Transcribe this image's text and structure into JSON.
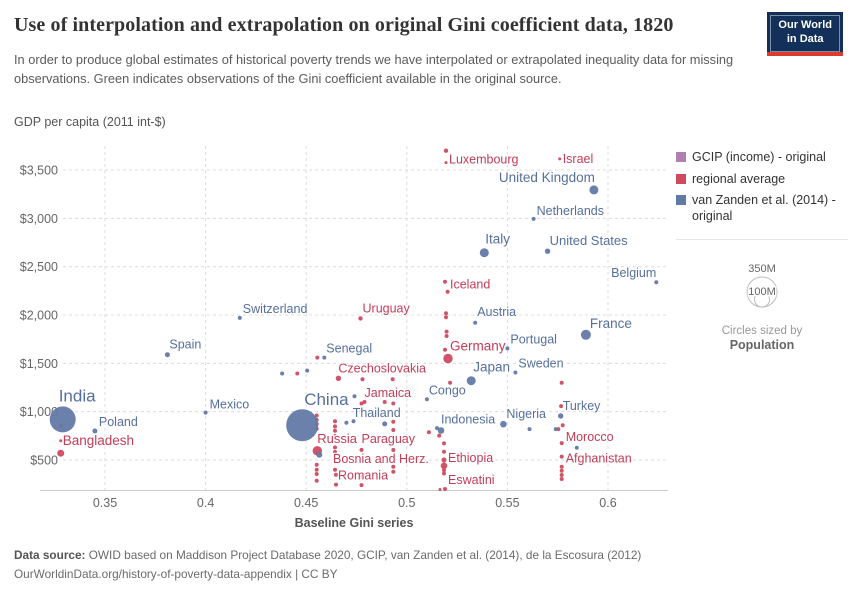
{
  "header": {
    "title": "Use of interpolation and extrapolation on original Gini coefficient data, 1820",
    "subtitle": "In order to produce global estimates of historical poverty trends we have interpolated or extrapolated inequality data for missing observations. Green indicates observations of the Gini coefficient available in the original source.",
    "logo_line1": "Our World",
    "logo_line2": "in Data"
  },
  "size_legend": {
    "outer_label": "350M",
    "inner_label": "100M",
    "caption1": "Circles sized by",
    "caption2": "Population"
  },
  "footer": {
    "source_prefix": "Data source:",
    "source_text": " OWID based on Maddison Project Database 2020, GCIP, van Zanden et al. (2014), de la Escosura (2012)",
    "license": "OurWorldinData.org/history-of-poverty-data-appendix | CC BY"
  },
  "chart_data": {
    "type": "scatter",
    "title": "Use of interpolation and extrapolation on original Gini coefficient data, 1820",
    "xlabel": "Baseline Gini series",
    "ylabel": "GDP per capita (2011 int-$)",
    "xlim": [
      0.318,
      0.628
    ],
    "ylim": [
      190,
      3780
    ],
    "grid": true,
    "legend_position": "right",
    "size_by": "Population",
    "size_ticks": [
      "350M",
      "100M"
    ],
    "x_ticks": [
      {
        "v": 0.35,
        "label": "0.35"
      },
      {
        "v": 0.4,
        "label": "0.4"
      },
      {
        "v": 0.45,
        "label": "0.45"
      },
      {
        "v": 0.5,
        "label": "0.5"
      },
      {
        "v": 0.55,
        "label": "0.55"
      },
      {
        "v": 0.6,
        "label": "0.6"
      }
    ],
    "y_ticks": [
      {
        "v": 500,
        "label": "$500"
      },
      {
        "v": 1000,
        "label": "$1,000"
      },
      {
        "v": 1500,
        "label": "$1,500"
      },
      {
        "v": 2000,
        "label": "$2,000"
      },
      {
        "v": 2500,
        "label": "$2,500"
      },
      {
        "v": 3000,
        "label": "$3,000"
      },
      {
        "v": 3500,
        "label": "$3,500"
      }
    ],
    "series": [
      {
        "name": "GCIP (income) - original",
        "color": "#b180b2",
        "label_color": "#9c5f9e",
        "points": []
      },
      {
        "name": "regional average",
        "color": "#cf4a5f",
        "label_color": "#c23d58",
        "points": [
          {
            "label": "Bangladesh",
            "x": 0.328,
            "y": 570,
            "r": 3.5,
            "dx": 2,
            "dy": -8,
            "fs": 13.5
          },
          {
            "label": "Luxembourg",
            "x": 0.5195,
            "y": 3700,
            "r": 2.2,
            "dx": 3,
            "dy": 13
          },
          {
            "label": "Israel",
            "x": 0.576,
            "y": 3615,
            "r": 1.5,
            "dx": 3,
            "dy": 4
          },
          {
            "label": "Iceland",
            "x": 0.519,
            "y": 2345,
            "r": 2,
            "dx": 5,
            "dy": 7
          },
          {
            "label": "Uruguay",
            "x": 0.477,
            "y": 1965,
            "r": 2.2,
            "dx": 2,
            "dy": -6
          },
          {
            "label": "Germany",
            "x": 0.5205,
            "y": 1550,
            "r": 4.7,
            "dx": 2,
            "dy": -8,
            "fs": 13.5
          },
          {
            "label": "Czechoslovakia",
            "x": 0.466,
            "y": 1345,
            "r": 2.7,
            "dx": 0,
            "dy": -6
          },
          {
            "label": "Jamaica",
            "x": 0.479,
            "y": 1100,
            "r": 2,
            "dx": 0,
            "dy": -5
          },
          {
            "label": "Russia",
            "x": 0.4555,
            "y": 595,
            "r": 4.7,
            "dx": 0,
            "dy": -8,
            "fs": 13
          },
          {
            "label": "Paraguay",
            "x": 0.4775,
            "y": 605,
            "r": 2,
            "dx": 0,
            "dy": -7
          },
          {
            "label": "Bosnia and Herz.",
            "x": 0.4643,
            "y": 583,
            "r": 2,
            "dx": -2,
            "dy": 11
          },
          {
            "label": "Romania",
            "x": 0.4648,
            "y": 245,
            "r": 2,
            "dx": 2,
            "dy": -5
          },
          {
            "label": "Ethiopia",
            "x": 0.5185,
            "y": 440,
            "r": 3.3,
            "dx": 4,
            "dy": -4
          },
          {
            "label": "Eswatini",
            "x": 0.519,
            "y": 200,
            "r": 2,
            "dx": 3,
            "dy": -5
          },
          {
            "label": "Morocco",
            "x": 0.577,
            "y": 675,
            "r": 2,
            "dx": 4,
            "dy": -2
          },
          {
            "label": "Afghanistan",
            "x": 0.577,
            "y": 535,
            "r": 2,
            "dx": 4,
            "dy": 6
          },
          {
            "x": 0.5203,
            "y": 2240,
            "r": 2
          },
          {
            "x": 0.5195,
            "y": 3577,
            "r": 1.5
          },
          {
            "x": 0.5195,
            "y": 2018,
            "r": 2
          },
          {
            "x": 0.5195,
            "y": 1977,
            "r": 2
          },
          {
            "x": 0.5198,
            "y": 1828,
            "r": 2
          },
          {
            "x": 0.5198,
            "y": 1783,
            "r": 2
          },
          {
            "x": 0.519,
            "y": 1640,
            "r": 2
          },
          {
            "x": 0.5215,
            "y": 1300,
            "r": 2
          },
          {
            "x": 0.3281,
            "y": 852,
            "r": 2.2
          },
          {
            "x": 0.328,
            "y": 700,
            "r": 1.5
          },
          {
            "x": 0.4555,
            "y": 1560,
            "r": 2
          },
          {
            "x": 0.4456,
            "y": 1395,
            "r": 2
          },
          {
            "x": 0.478,
            "y": 1335,
            "r": 2
          },
          {
            "x": 0.493,
            "y": 1335,
            "r": 2
          },
          {
            "x": 0.489,
            "y": 1100,
            "r": 2
          },
          {
            "x": 0.4552,
            "y": 960,
            "r": 2
          },
          {
            "x": 0.4552,
            "y": 915,
            "r": 2
          },
          {
            "x": 0.4552,
            "y": 872,
            "r": 2
          },
          {
            "x": 0.4552,
            "y": 823,
            "r": 2
          },
          {
            "x": 0.4552,
            "y": 450,
            "r": 2
          },
          {
            "x": 0.4552,
            "y": 400,
            "r": 2
          },
          {
            "x": 0.4552,
            "y": 355,
            "r": 2
          },
          {
            "x": 0.4552,
            "y": 285,
            "r": 2
          },
          {
            "x": 0.4643,
            "y": 900,
            "r": 2
          },
          {
            "x": 0.4643,
            "y": 848,
            "r": 2
          },
          {
            "x": 0.4643,
            "y": 803,
            "r": 2
          },
          {
            "x": 0.4643,
            "y": 755,
            "r": 1.5
          },
          {
            "x": 0.4643,
            "y": 630,
            "r": 2
          },
          {
            "x": 0.4643,
            "y": 400,
            "r": 2
          },
          {
            "x": 0.4648,
            "y": 348,
            "r": 2
          },
          {
            "x": 0.4775,
            "y": 1085,
            "r": 2
          },
          {
            "x": 0.4775,
            "y": 1018,
            "r": 2
          },
          {
            "x": 0.4775,
            "y": 327,
            "r": 2
          },
          {
            "x": 0.4775,
            "y": 240,
            "r": 2
          },
          {
            "x": 0.4933,
            "y": 1085,
            "r": 2
          },
          {
            "x": 0.4933,
            "y": 895,
            "r": 2
          },
          {
            "x": 0.4933,
            "y": 810,
            "r": 2
          },
          {
            "x": 0.4933,
            "y": 603,
            "r": 2
          },
          {
            "x": 0.4933,
            "y": 430,
            "r": 2
          },
          {
            "x": 0.4933,
            "y": 378,
            "r": 2
          },
          {
            "x": 0.511,
            "y": 787,
            "r": 2
          },
          {
            "x": 0.5161,
            "y": 752,
            "r": 2
          },
          {
            "x": 0.5185,
            "y": 672,
            "r": 2
          },
          {
            "x": 0.5185,
            "y": 585,
            "r": 2
          },
          {
            "x": 0.5185,
            "y": 500,
            "r": 2.5
          },
          {
            "x": 0.5185,
            "y": 395,
            "r": 2
          },
          {
            "x": 0.5185,
            "y": 360,
            "r": 2
          },
          {
            "x": 0.5165,
            "y": 195,
            "r": 1.5
          },
          {
            "x": 0.577,
            "y": 1300,
            "r": 2
          },
          {
            "x": 0.5767,
            "y": 1058,
            "r": 2
          },
          {
            "x": 0.5775,
            "y": 860,
            "r": 2
          },
          {
            "x": 0.5753,
            "y": 820,
            "r": 2
          },
          {
            "x": 0.577,
            "y": 430,
            "r": 2
          },
          {
            "x": 0.577,
            "y": 388,
            "r": 2
          },
          {
            "x": 0.577,
            "y": 345,
            "r": 2
          },
          {
            "x": 0.577,
            "y": 303,
            "r": 2
          }
        ]
      },
      {
        "name": "van Zanden et al. (2014) - original",
        "color": "#6379a5",
        "label_color": "#55709d",
        "points": [
          {
            "label": "India",
            "x": 0.329,
            "y": 920,
            "r": 13,
            "dx": -4,
            "dy": -18,
            "fs": 17
          },
          {
            "label": "Poland",
            "x": 0.345,
            "y": 800,
            "r": 2.5,
            "dx": 4,
            "dy": -5
          },
          {
            "label": "Spain",
            "x": 0.381,
            "y": 1590,
            "r": 2.5,
            "dx": 2,
            "dy": -6
          },
          {
            "label": "Mexico",
            "x": 0.4,
            "y": 990,
            "r": 2,
            "dx": 4,
            "dy": -4
          },
          {
            "label": "Switzerland",
            "x": 0.417,
            "y": 1970,
            "r": 2,
            "dx": 3,
            "dy": -5
          },
          {
            "label": "China",
            "x": 0.448,
            "y": 860,
            "r": 16,
            "dx": 2,
            "dy": -20,
            "fs": 17
          },
          {
            "label": "Senegal",
            "x": 0.459,
            "y": 1560,
            "r": 2,
            "dx": 2,
            "dy": -5
          },
          {
            "label": "Thailand",
            "x": 0.489,
            "y": 873,
            "r": 2.5,
            "dx": -8,
            "dy": -7,
            "a": "middle"
          },
          {
            "label": "Congo",
            "x": 0.51,
            "y": 1128,
            "r": 2,
            "dx": 2,
            "dy": -5
          },
          {
            "label": "Japan",
            "x": 0.532,
            "y": 1320,
            "r": 4.5,
            "dx": 2,
            "dy": -9,
            "fs": 13.5
          },
          {
            "label": "Italy",
            "x": 0.5385,
            "y": 2645,
            "r": 4.5,
            "dx": 1,
            "dy": -9,
            "fs": 13.5
          },
          {
            "label": "Austria",
            "x": 0.534,
            "y": 1920,
            "r": 2,
            "dx": 2,
            "dy": -7
          },
          {
            "label": "Portugal",
            "x": 0.55,
            "y": 1655,
            "r": 2,
            "dx": 3,
            "dy": -5
          },
          {
            "label": "Sweden",
            "x": 0.554,
            "y": 1405,
            "r": 2,
            "dx": 3,
            "dy": -5
          },
          {
            "label": "France",
            "x": 0.589,
            "y": 1795,
            "r": 5,
            "dx": 4,
            "dy": -7,
            "fs": 13.5
          },
          {
            "label": "United Kingdom",
            "x": 0.593,
            "y": 3295,
            "r": 4.5,
            "a": "end",
            "dx": 1,
            "dy": -8,
            "fs": 13.5
          },
          {
            "label": "Netherlands",
            "x": 0.563,
            "y": 2995,
            "r": 2,
            "dx": 3,
            "dy": -4
          },
          {
            "label": "United States",
            "x": 0.57,
            "y": 2660,
            "r": 2.7,
            "dx": 2,
            "dy": -6,
            "fs": 13
          },
          {
            "label": "Belgium",
            "x": 0.624,
            "y": 2340,
            "r": 2,
            "a": "end",
            "dx": 0,
            "dy": -5
          },
          {
            "label": "Nigeria",
            "x": 0.548,
            "y": 870,
            "r": 3.3,
            "dx": 3,
            "dy": -6
          },
          {
            "label": "Indonesia",
            "x": 0.517,
            "y": 805,
            "r": 3.3,
            "dx": 0,
            "dy": -7
          },
          {
            "label": "Turkey",
            "x": 0.5765,
            "y": 955,
            "r": 2.7,
            "dx": 2,
            "dy": -6
          },
          {
            "x": 0.474,
            "y": 1160,
            "r": 2
          },
          {
            "x": 0.438,
            "y": 1395,
            "r": 2
          },
          {
            "x": 0.4505,
            "y": 1425,
            "r": 2
          },
          {
            "x": 0.47,
            "y": 885,
            "r": 2
          },
          {
            "x": 0.4735,
            "y": 900,
            "r": 2
          },
          {
            "x": 0.4565,
            "y": 555,
            "r": 3
          },
          {
            "x": 0.515,
            "y": 830,
            "r": 2
          },
          {
            "x": 0.561,
            "y": 820,
            "r": 2
          },
          {
            "x": 0.574,
            "y": 820,
            "r": 2
          },
          {
            "x": 0.5845,
            "y": 627,
            "r": 2
          }
        ]
      }
    ]
  }
}
